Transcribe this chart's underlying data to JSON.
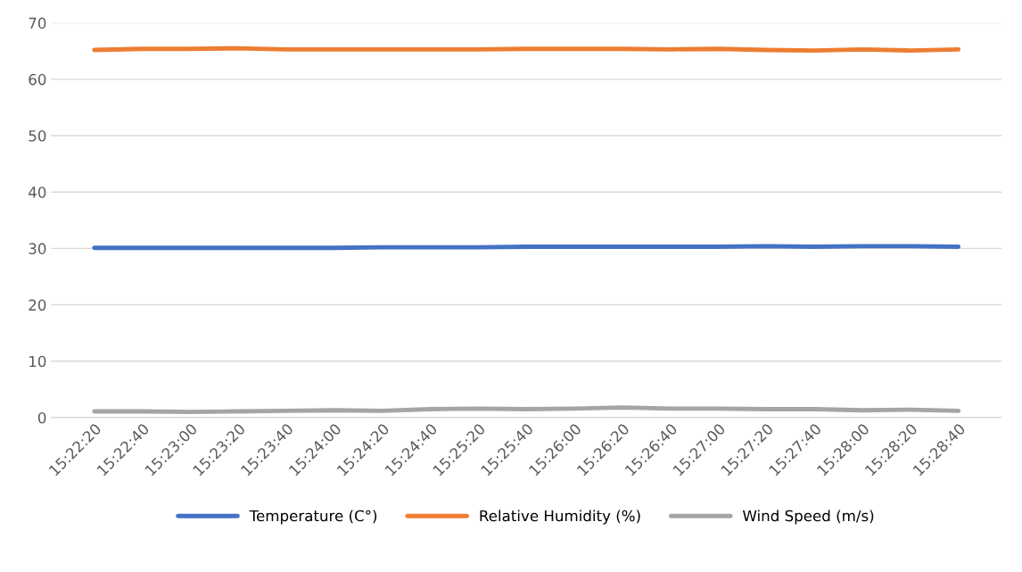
{
  "chart_data": {
    "type": "line",
    "categories": [
      "15:22:20",
      "15:22:40",
      "15:23:00",
      "15:23:20",
      "15:23:40",
      "15:24:00",
      "15:24:20",
      "15:24:40",
      "15:25:20",
      "15:25:40",
      "15:26:00",
      "15:26:20",
      "15:26:40",
      "15:27:00",
      "15:27:20",
      "15:27:40",
      "15:28:00",
      "15:28:20",
      "15:28:40"
    ],
    "series": [
      {
        "name": "Temperature (C°)",
        "color": "#4472c4",
        "values": [
          30.1,
          30.1,
          30.1,
          30.1,
          30.1,
          30.1,
          30.2,
          30.2,
          30.2,
          30.3,
          30.3,
          30.3,
          30.3,
          30.3,
          30.4,
          30.3,
          30.4,
          30.4,
          30.3
        ]
      },
      {
        "name": "Relative Humidity (%)",
        "color": "#ed7d31",
        "values": [
          65.2,
          65.4,
          65.4,
          65.5,
          65.3,
          65.3,
          65.3,
          65.3,
          65.3,
          65.4,
          65.4,
          65.4,
          65.3,
          65.4,
          65.2,
          65.1,
          65.3,
          65.1,
          65.3
        ]
      },
      {
        "name": "Wind Speed (m/s)",
        "color": "#a5a5a5",
        "values": [
          1.1,
          1.1,
          1.0,
          1.1,
          1.2,
          1.3,
          1.2,
          1.5,
          1.6,
          1.5,
          1.6,
          1.8,
          1.6,
          1.6,
          1.5,
          1.5,
          1.3,
          1.4,
          1.2
        ]
      }
    ],
    "ylim": [
      0,
      70
    ],
    "yticks": [
      0,
      10,
      20,
      30,
      40,
      50,
      60,
      70
    ],
    "grid": "y",
    "legend": "bottom",
    "marker": "none",
    "line_style": "solid"
  }
}
